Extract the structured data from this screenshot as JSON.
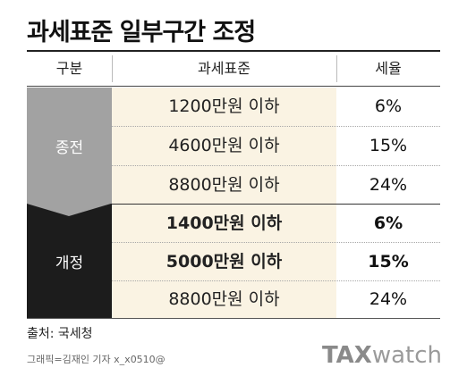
{
  "title": "과세표준 일부구간 조정",
  "headers": {
    "category": "구분",
    "base": "과세표준",
    "rate": "세율"
  },
  "groups": {
    "before": {
      "label": "종전",
      "rows": [
        {
          "base": "1200만원 이하",
          "rate": "6%"
        },
        {
          "base": "4600만원 이하",
          "rate": "15%"
        },
        {
          "base": "8800만원 이하",
          "rate": "24%"
        }
      ]
    },
    "after": {
      "label": "개정",
      "rows": [
        {
          "base": "1400만원 이하",
          "rate": "6%"
        },
        {
          "base": "5000만원 이하",
          "rate": "15%"
        },
        {
          "base": "8800만원 이하",
          "rate": "24%"
        }
      ]
    }
  },
  "source": "출처: 국세청",
  "credit": "그래픽=김재인 기자 x_x0510@",
  "logo": {
    "strong": "TAX",
    "light": "watch"
  },
  "colors": {
    "before_band": "#a2a2a2",
    "after_band": "#1c1c1c",
    "base_fill": "#faf3e3"
  }
}
